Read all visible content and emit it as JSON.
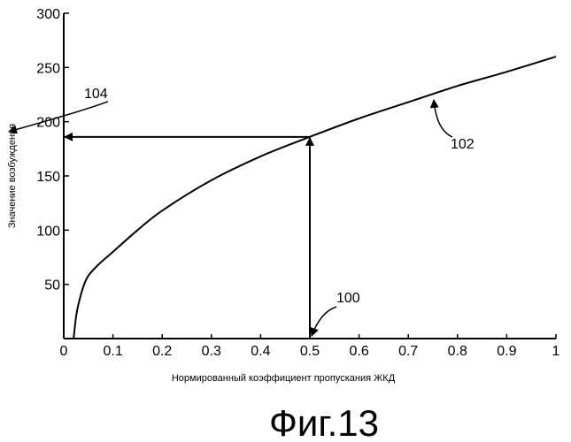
{
  "chart_data": {
    "type": "line",
    "title": "",
    "xlabel": "Нормированный коэффициент пропускания ЖКД",
    "ylabel": "Значение возбуждения",
    "xlim": [
      0,
      1
    ],
    "ylim": [
      0,
      300
    ],
    "x_ticks": [
      0,
      0.1,
      0.2,
      0.3,
      0.4,
      0.5,
      0.6,
      0.7,
      0.8,
      0.9,
      1
    ],
    "x_tick_labels": [
      "0",
      "0.1",
      "0.2",
      "0.3",
      "0.4",
      "0.5",
      "0.6",
      "0.7",
      "0.8",
      "0.9",
      "1"
    ],
    "y_ticks": [
      50,
      100,
      150,
      200,
      250,
      300
    ],
    "y_tick_labels": [
      "50",
      "100",
      "150",
      "200",
      "250",
      "300"
    ],
    "grid": false,
    "series": [
      {
        "x": [
          0.02,
          0.025,
          0.03,
          0.04,
          0.05,
          0.07,
          0.1,
          0.15,
          0.2,
          0.3,
          0.4,
          0.5,
          0.6,
          0.7,
          0.8,
          0.9,
          1.0
        ],
        "y": [
          0,
          20,
          32,
          48,
          58,
          68,
          80,
          100,
          118,
          146,
          168,
          186,
          203,
          218,
          233,
          246,
          260
        ]
      }
    ],
    "guides": {
      "vertical_arrow": {
        "x": 0.5,
        "from_y": 0,
        "to_y": 186
      },
      "horizontal_arrow": {
        "y": 186,
        "from_x": 0.5,
        "to_x": 0
      }
    },
    "annotations": [
      {
        "text": "100",
        "x": 0.5,
        "y": 0
      },
      {
        "text": "102",
        "x": 0.75,
        "y": 225
      },
      {
        "text": "104",
        "x": 0,
        "y": 186
      }
    ],
    "caption": "Фиг.13"
  }
}
